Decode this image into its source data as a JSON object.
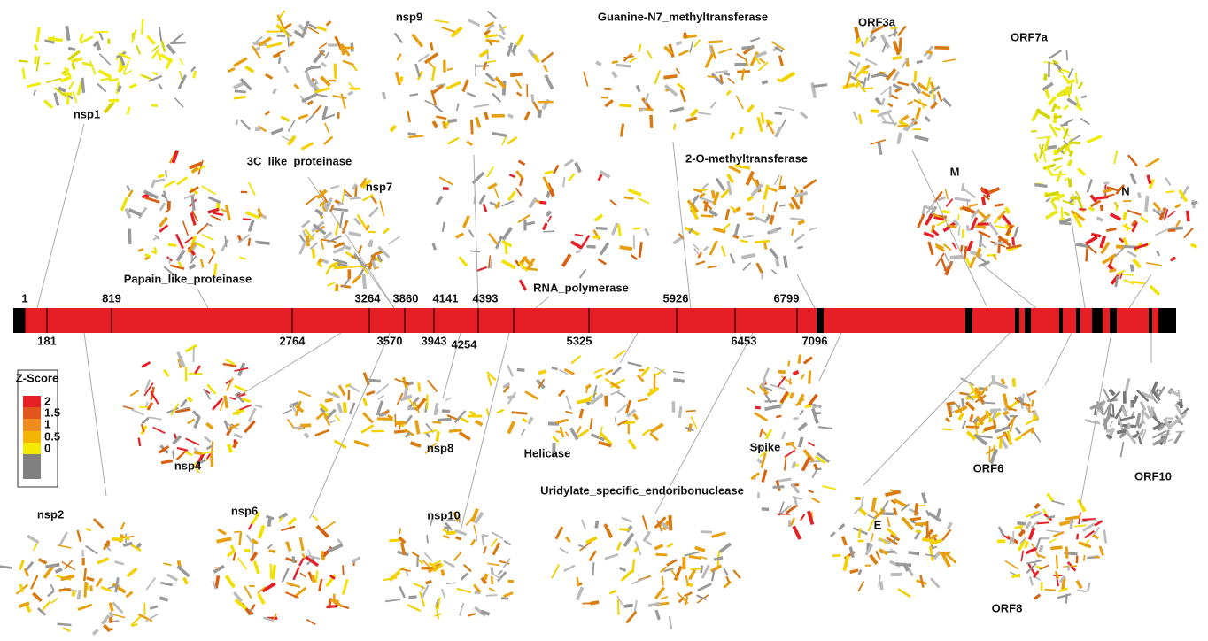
{
  "proteins": [
    {
      "label": "nsp1"
    },
    {
      "label": "3C_like_proteinase"
    },
    {
      "label": "nsp9"
    },
    {
      "label": "Guanine-N7_methyltransferase"
    },
    {
      "label": "ORF3a"
    },
    {
      "label": "ORF7a"
    },
    {
      "label": "2-O-methyltransferase"
    },
    {
      "label": "M"
    },
    {
      "label": "N"
    },
    {
      "label": "nsp7"
    },
    {
      "label": "Papain_like_proteinase"
    },
    {
      "label": "RNA_polymerase"
    },
    {
      "label": "nsp4"
    },
    {
      "label": "nsp8"
    },
    {
      "label": "Helicase"
    },
    {
      "label": "Spike"
    },
    {
      "label": "ORF6"
    },
    {
      "label": "ORF10"
    },
    {
      "label": "nsp2"
    },
    {
      "label": "nsp6"
    },
    {
      "label": "nsp10"
    },
    {
      "label": "Uridylate_specific_endoribonuclease"
    },
    {
      "label": "E"
    },
    {
      "label": "ORF8"
    }
  ],
  "genome": {
    "top_positions": [
      1,
      819,
      3264,
      3860,
      4141,
      4393,
      5926,
      6799
    ],
    "bottom_positions": [
      181,
      2764,
      3570,
      3943,
      4254,
      5325,
      6453,
      7096
    ]
  },
  "legend": {
    "title": "Z-Score",
    "levels": [
      2,
      1.5,
      1,
      0.5,
      0
    ]
  }
}
